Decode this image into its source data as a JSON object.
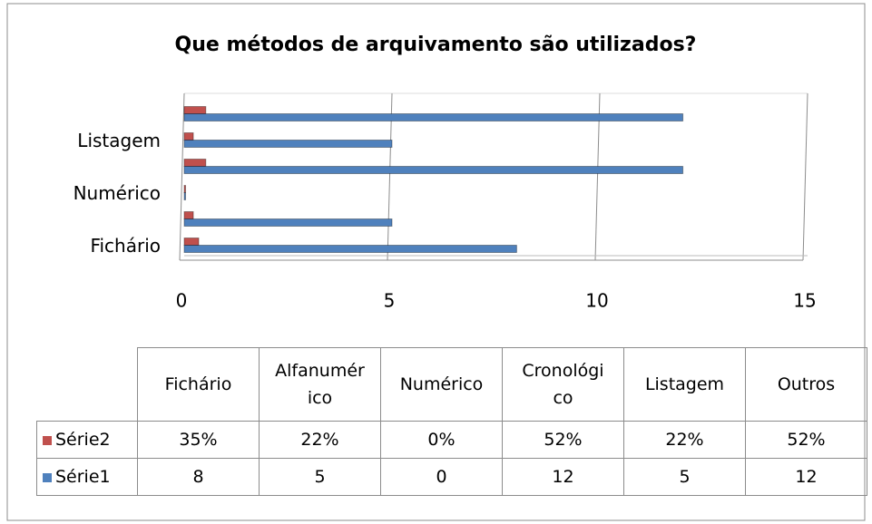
{
  "chart_data": {
    "type": "bar",
    "orientation": "horizontal",
    "title": "Que métodos de arquivamento são utilizados?",
    "categories": [
      "Fichário",
      "Alfanumérico",
      "Numérico",
      "Cronológico",
      "Listagem",
      "Outros"
    ],
    "axis_label_step": 2,
    "series": [
      {
        "name": "Série2",
        "color": "#c0504d",
        "values": [
          0.35,
          0.22,
          0,
          0.52,
          0.22,
          0.52
        ],
        "value_labels": [
          "35%",
          "22%",
          "0%",
          "52%",
          "22%",
          "52%"
        ]
      },
      {
        "name": "Série1",
        "color": "#4f81bd",
        "values": [
          8,
          5,
          0,
          12,
          5,
          12
        ]
      }
    ],
    "xlim": [
      0,
      15
    ],
    "xticks": [
      0,
      5,
      10,
      15
    ],
    "grid": true,
    "data_table": true
  }
}
